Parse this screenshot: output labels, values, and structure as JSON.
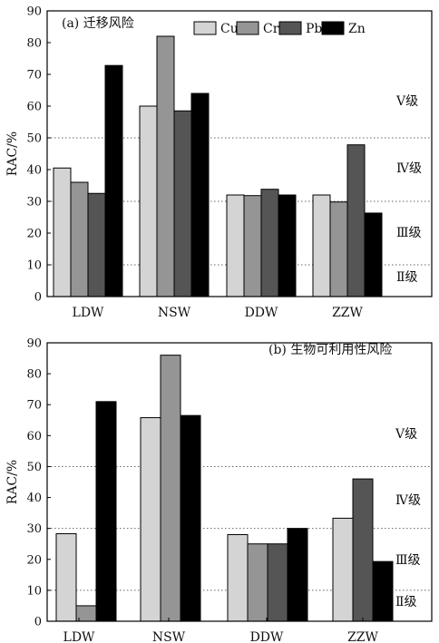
{
  "chart_data": [
    {
      "type": "bar",
      "title": "(a) 迁移风险",
      "ylabel": "RAC/%",
      "xlabel": "",
      "ylim": [
        0,
        90
      ],
      "yticks": [
        0,
        10,
        20,
        30,
        40,
        50,
        60,
        70,
        80,
        90
      ],
      "categories": [
        "LDW",
        "NSW",
        "DDW",
        "ZZW"
      ],
      "series": [
        {
          "name": "Cu",
          "color": "#d4d4d4",
          "values": [
            40.5,
            60,
            32,
            32
          ]
        },
        {
          "name": "Cr",
          "color": "#959595",
          "values": [
            36,
            82,
            31.8,
            29.8
          ]
        },
        {
          "name": "Pb",
          "color": "#555555",
          "values": [
            32.5,
            58.5,
            33.8,
            47.8
          ]
        },
        {
          "name": "Zn",
          "color": "#000000",
          "values": [
            72.8,
            64,
            32,
            26.3
          ]
        }
      ],
      "reference_lines": [
        10,
        30,
        50
      ],
      "grid": false,
      "legend_position": "top-right",
      "level_labels": [
        "Ⅴ级",
        "Ⅳ级",
        "Ⅲ级",
        "Ⅱ级"
      ]
    },
    {
      "type": "bar",
      "title": "(b) 生物可利用性风险",
      "ylabel": "RAC/%",
      "xlabel": "",
      "ylim": [
        0,
        90
      ],
      "yticks": [
        0,
        10,
        20,
        30,
        40,
        50,
        60,
        70,
        80,
        90
      ],
      "categories": [
        "LDW",
        "NSW",
        "DDW",
        "ZZW"
      ],
      "series": [
        {
          "name": "Cu",
          "color": "#d4d4d4",
          "values": [
            28.3,
            65.8,
            28,
            33.3
          ]
        },
        {
          "name": "Cr",
          "color": "#959595",
          "values": [
            5,
            86,
            25,
            null
          ]
        },
        {
          "name": "Pb",
          "color": "#555555",
          "values": [
            null,
            null,
            25,
            46
          ]
        },
        {
          "name": "Zn",
          "color": "#000000",
          "values": [
            71,
            66.5,
            30,
            19.3
          ]
        }
      ],
      "reference_lines": [
        10,
        30,
        50
      ],
      "grid": false,
      "legend_position": "none",
      "level_labels": [
        "Ⅴ级",
        "Ⅳ级",
        "Ⅲ级",
        "Ⅱ级"
      ]
    }
  ]
}
